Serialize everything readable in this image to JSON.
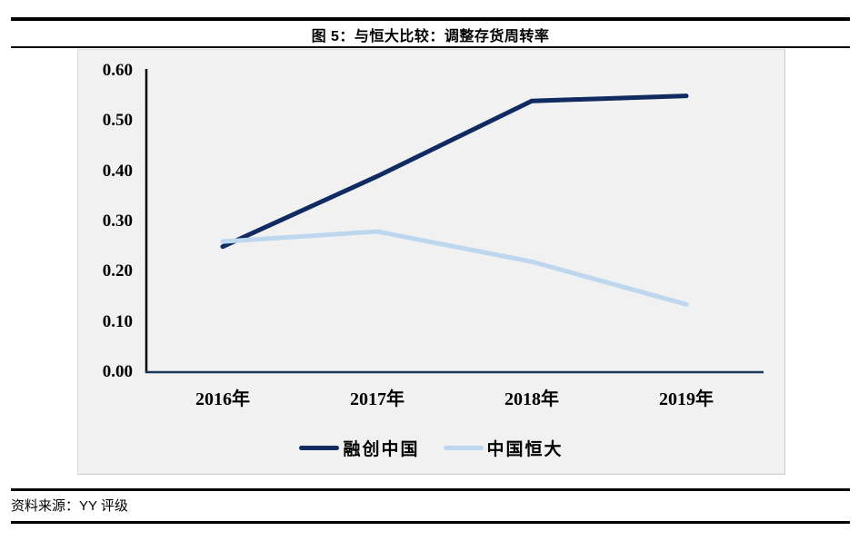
{
  "figure": {
    "title": "图 5：与恒大比较：调整存货周转率"
  },
  "source": {
    "text": "资料来源：YY 评级"
  },
  "chart_data": {
    "type": "line",
    "title": "图 5：与恒大比较：调整存货周转率",
    "categories": [
      "2016年",
      "2017年",
      "2018年",
      "2019年"
    ],
    "series": [
      {
        "name": "融创中国",
        "values": [
          0.25,
          0.39,
          0.54,
          0.55
        ],
        "color": "#102a62"
      },
      {
        "name": "中国恒大",
        "values": [
          0.26,
          0.28,
          0.22,
          0.135
        ],
        "color": "#bdd7ee"
      }
    ],
    "xlabel": "",
    "ylabel": "",
    "ylim": [
      0,
      0.6
    ],
    "ytick_labels": [
      "0.00",
      "0.10",
      "0.20",
      "0.30",
      "0.40",
      "0.50",
      "0.60"
    ],
    "grid": false,
    "legend_position": "bottom",
    "plot_background": "#f1f1f1",
    "axis_color": "#17375e"
  }
}
